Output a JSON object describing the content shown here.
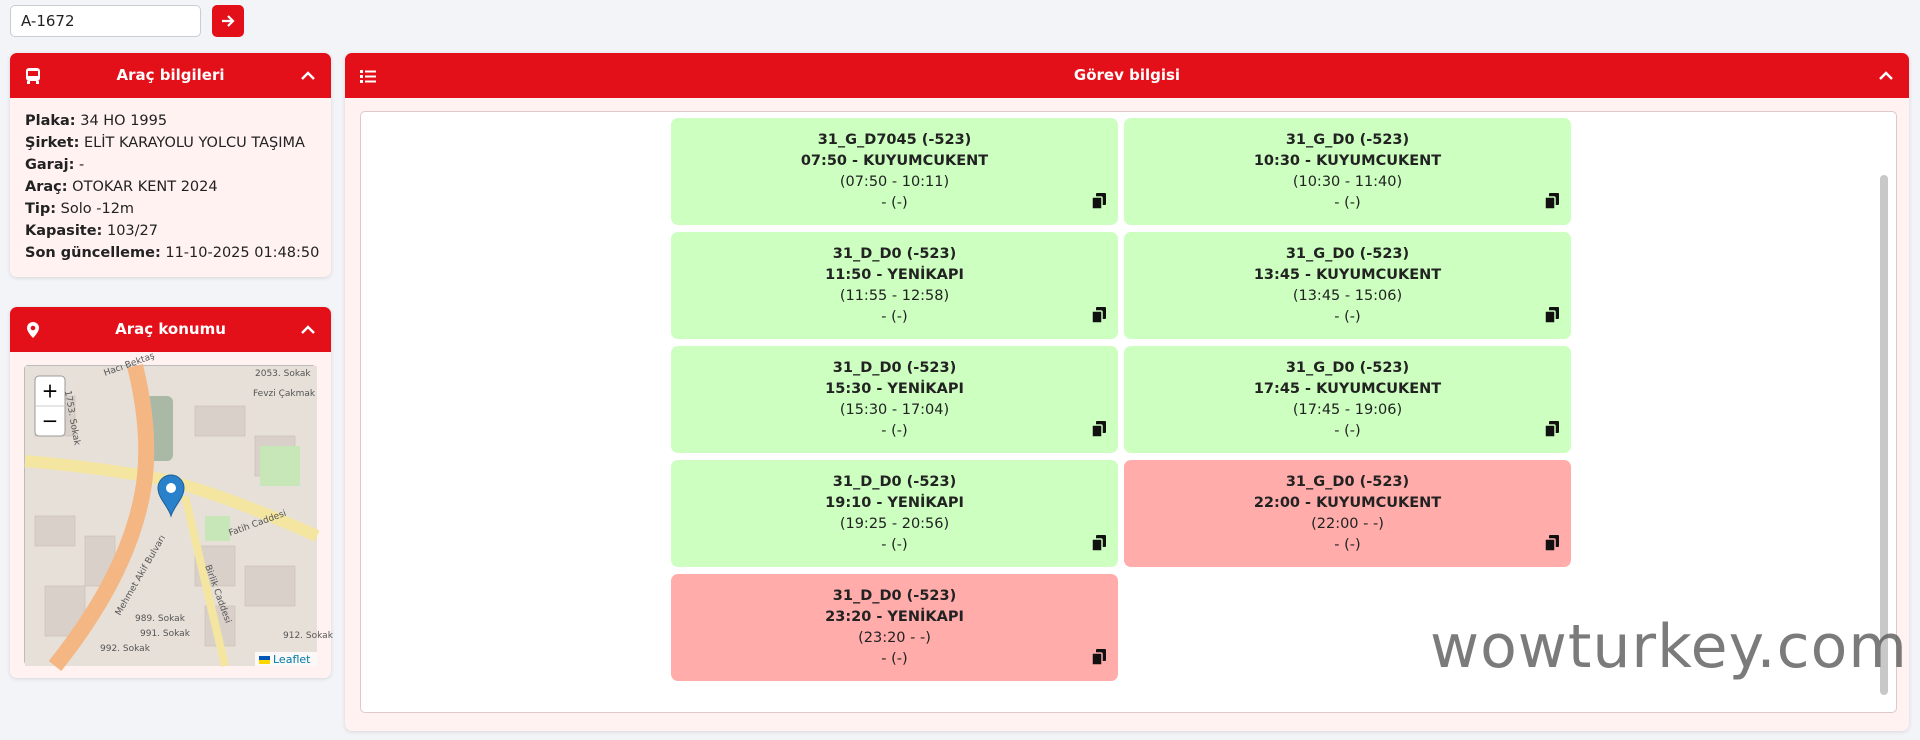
{
  "search": {
    "value": "A-1672"
  },
  "vehicle_panel": {
    "title": "Araç bilgileri",
    "rows": [
      [
        "Plaka:",
        "34 HO 1995"
      ],
      [
        "Şirket:",
        "ELİT KARAYOLU YOLCU TAŞIMA"
      ],
      [
        "Garaj:",
        "-"
      ],
      [
        "Araç:",
        "OTOKAR KENT 2024"
      ],
      [
        "Tip:",
        "Solo -12m"
      ],
      [
        "Kapasite:",
        "103/27"
      ],
      [
        "Son güncelleme:",
        "11-10-2025 01:48:50"
      ]
    ]
  },
  "location_panel": {
    "title": "Araç konumu",
    "zoom_in": "+",
    "zoom_out": "−",
    "attribution": "Leaflet",
    "streets": [
      "Fatih Caddesi",
      "Mehmet Akif Bulvarı",
      "Birlik Caddesi",
      "Fevzi Çakmak",
      "Hacı Bektaş",
      "2053. Sokak",
      "1753. Sokak",
      "989. Sokak",
      "991. Sokak",
      "992. Sokak",
      "912. Sokak"
    ]
  },
  "task_panel": {
    "title": "Görev bilgisi",
    "cards": [
      {
        "lines": [
          "31_G_D7045 (-523)",
          "07:50 - KUYUMCUKENT",
          "(07:50 - 10:11)",
          "- (-)"
        ],
        "color": "#ccffc0"
      },
      {
        "lines": [
          "31_G_D0 (-523)",
          "10:30 - KUYUMCUKENT",
          "(10:30 - 11:40)",
          "- (-)"
        ],
        "color": "#ccffc0"
      },
      {
        "lines": [
          "31_D_D0 (-523)",
          "11:50 - YENİKAPI",
          "(11:55 - 12:58)",
          "- (-)"
        ],
        "color": "#ccffc0"
      },
      {
        "lines": [
          "31_G_D0 (-523)",
          "13:45 - KUYUMCUKENT",
          "(13:45 - 15:06)",
          "- (-)"
        ],
        "color": "#ccffc0"
      },
      {
        "lines": [
          "31_D_D0 (-523)",
          "15:30 - YENİKAPI",
          "(15:30 - 17:04)",
          "- (-)"
        ],
        "color": "#ccffc0"
      },
      {
        "lines": [
          "31_G_D0 (-523)",
          "17:45 - KUYUMCUKENT",
          "(17:45 - 19:06)",
          "- (-)"
        ],
        "color": "#ccffc0"
      },
      {
        "lines": [
          "31_D_D0 (-523)",
          "19:10 - YENİKAPI",
          "(19:25 - 20:56)",
          "- (-)"
        ],
        "color": "#ccffc0"
      },
      {
        "lines": [
          "31_G_D0 (-523)",
          "22:00 - KUYUMCUKENT",
          "(22:00 - -)",
          "- (-)"
        ],
        "color": "#ffacab"
      },
      {
        "lines": [
          "31_D_D0 (-523)",
          "23:20 - YENİKAPI",
          "(23:20 - -)",
          "- (-)"
        ],
        "color": "#ffacab"
      }
    ]
  },
  "watermark": "wowturkey.com"
}
